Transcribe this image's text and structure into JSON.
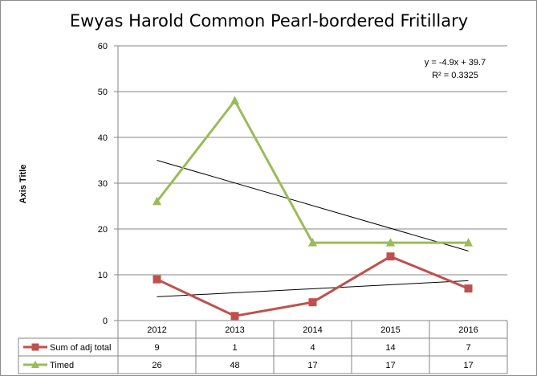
{
  "chart_data": {
    "type": "line",
    "title": "Ewyas Harold Common Pearl-bordered Fritillary",
    "ylabel": "Axis Title",
    "xlabel": "",
    "ylim": [
      0,
      60
    ],
    "yticks": [
      0,
      10,
      20,
      30,
      40,
      50,
      60
    ],
    "categories": [
      "2012",
      "2013",
      "2014",
      "2015",
      "2016"
    ],
    "grid": "horizontal",
    "legend": "data-table",
    "series": [
      {
        "name": "Sum of adj total",
        "values": [
          9,
          1,
          4,
          14,
          7
        ],
        "color": "#c0504d",
        "marker": "square"
      },
      {
        "name": "Timed",
        "values": [
          26,
          48,
          17,
          17,
          17
        ],
        "color": "#9bbb59",
        "marker": "triangle"
      }
    ],
    "trendlines": [
      {
        "series": "Sum of adj total",
        "values": [
          5.2,
          8.7
        ],
        "color": "#000000"
      },
      {
        "series": "Timed",
        "values": [
          35,
          15.2
        ],
        "color": "#000000",
        "equation": "y = -4.9x + 39.7",
        "r2": "R² = 0.3325"
      }
    ]
  }
}
